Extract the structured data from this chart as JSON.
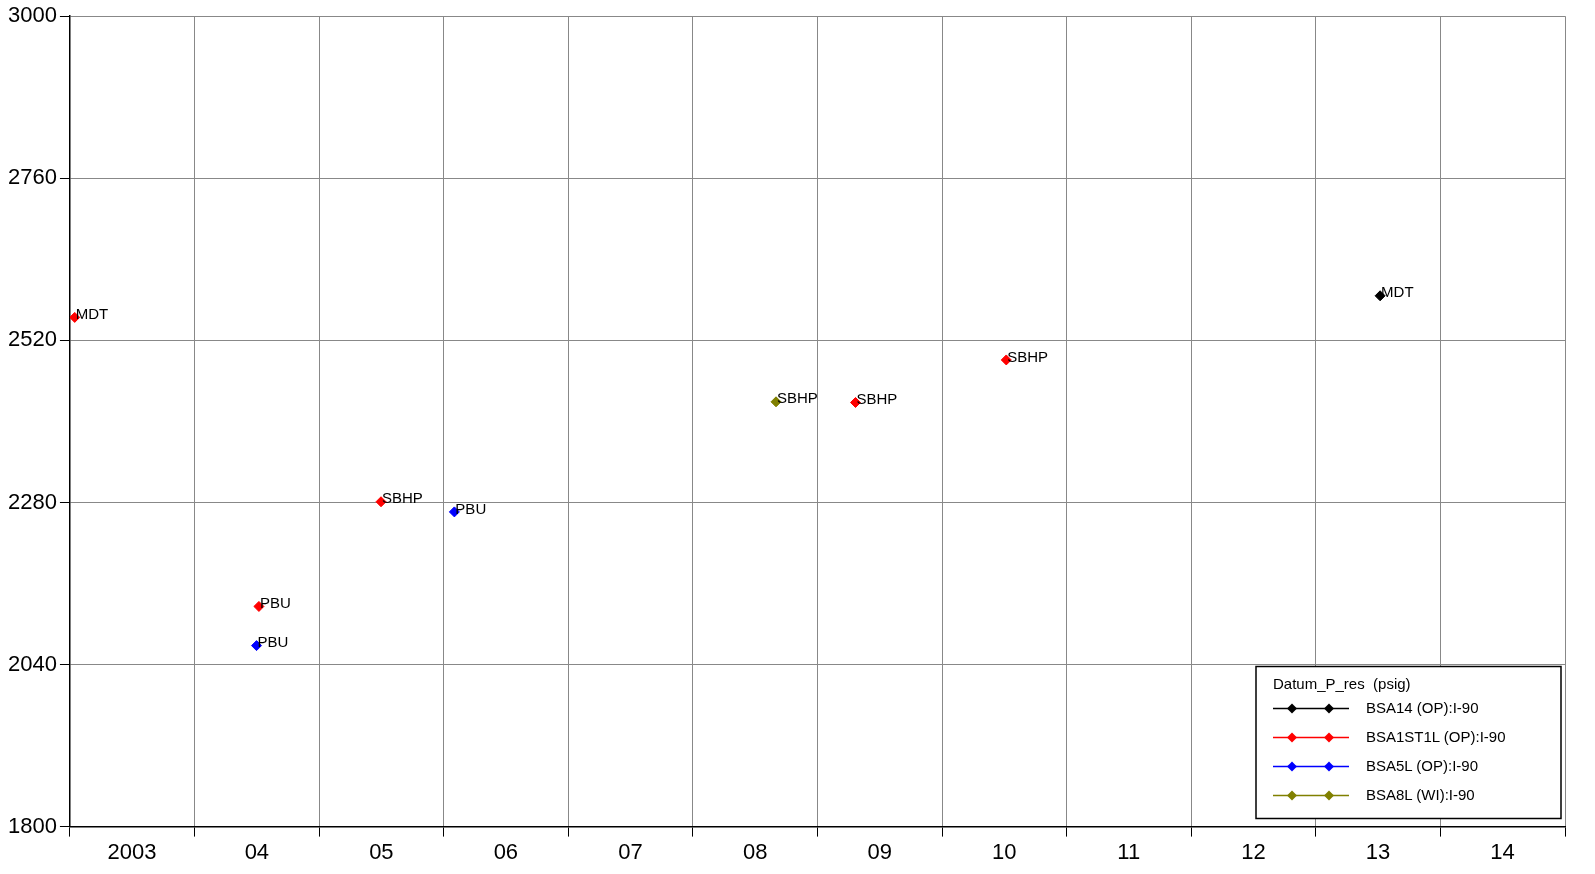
{
  "chart_data": {
    "type": "scatter",
    "marker": "diamond",
    "grid": true,
    "legend": "bottom right",
    "legend_title": "Datum_P_res  (psig)",
    "xlim": [
      "2003-01-01",
      "2015-01-01"
    ],
    "xticks": [
      {
        "value": "2003-01-01",
        "label": null
      },
      {
        "value": "2003-07-02",
        "label": "2003"
      },
      {
        "value": "2004-01-01",
        "label": null
      },
      {
        "value": "2004-07-02",
        "label": "04"
      },
      {
        "value": "2005-01-01",
        "label": null
      },
      {
        "value": "2005-07-02",
        "label": "05"
      },
      {
        "value": "2006-01-01",
        "label": null
      },
      {
        "value": "2006-07-02",
        "label": "06"
      },
      {
        "value": "2007-01-01",
        "label": null
      },
      {
        "value": "2007-07-02",
        "label": "07"
      },
      {
        "value": "2008-01-01",
        "label": null
      },
      {
        "value": "2008-07-02",
        "label": "08"
      },
      {
        "value": "2009-01-01",
        "label": null
      },
      {
        "value": "2009-07-02",
        "label": "09"
      },
      {
        "value": "2010-01-01",
        "label": null
      },
      {
        "value": "2010-07-02",
        "label": "10"
      },
      {
        "value": "2011-01-01",
        "label": null
      },
      {
        "value": "2011-07-02",
        "label": "11"
      },
      {
        "value": "2012-01-01",
        "label": null
      },
      {
        "value": "2012-07-02",
        "label": "12"
      },
      {
        "value": "2013-01-01",
        "label": null
      },
      {
        "value": "2013-07-02",
        "label": "13"
      },
      {
        "value": "2014-01-01",
        "label": null
      },
      {
        "value": "2014-07-02",
        "label": "14"
      },
      {
        "value": "2015-01-01",
        "label": null
      }
    ],
    "ylim": [
      1800,
      3000
    ],
    "yticks": [
      1800,
      2040,
      2280,
      2520,
      2760,
      3000
    ],
    "series": [
      {
        "name": "BSA14 (OP):I-90",
        "color": "#000000",
        "x": [
          "2013-07-08"
        ],
        "values": [
          2586
        ]
      },
      {
        "name": "BSA1ST1L (OP):I-90",
        "color": "#ff0000",
        "x": [
          "2003-01-15",
          "2004-07-08",
          "2005-07-01",
          "2009-04-22",
          "2010-07-08"
        ],
        "values": [
          2554,
          2126,
          2281,
          2428,
          2491
        ]
      },
      {
        "name": "BSA5L (OP):I-90",
        "color": "#0000ff",
        "x": [
          "2004-07-01",
          "2006-02-01"
        ],
        "values": [
          2068,
          2266
        ]
      },
      {
        "name": "BSA8L (WI):I-90",
        "color": "#808000",
        "x": [
          "2008-09-01"
        ],
        "values": [
          2429
        ]
      }
    ],
    "annotations": [
      {
        "text": "MDT",
        "x": "2003-01-15",
        "y": 2554
      },
      {
        "text": "PBU",
        "x": "2004-07-08",
        "y": 2126
      },
      {
        "text": "PBU",
        "x": "2004-07-01",
        "y": 2068
      },
      {
        "text": "SBHP",
        "x": "2005-07-01",
        "y": 2281
      },
      {
        "text": "PBU",
        "x": "2006-02-01",
        "y": 2266
      },
      {
        "text": "SBHP",
        "x": "2008-09-01",
        "y": 2429
      },
      {
        "text": "SBHP",
        "x": "2009-04-22",
        "y": 2428
      },
      {
        "text": "SBHP",
        "x": "2010-07-08",
        "y": 2491
      },
      {
        "text": "MDT",
        "x": "2013-07-08",
        "y": 2586
      }
    ]
  }
}
